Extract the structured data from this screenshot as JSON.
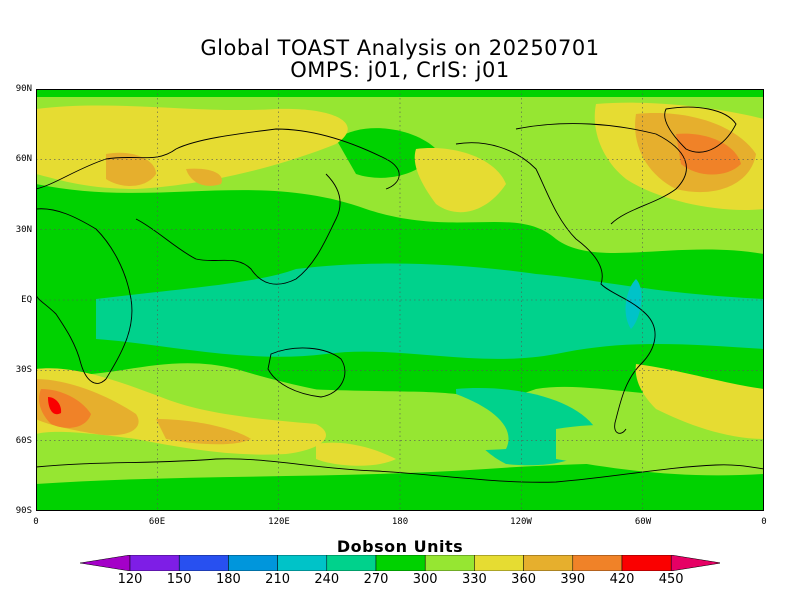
{
  "title": "Global TOAST Analysis on 20250701",
  "subtitle": "OMPS: j01, CrIS: j01",
  "map": {
    "projection": "cylindrical equidistant",
    "lon_range": [
      0,
      360
    ],
    "lat_range": [
      -90,
      90
    ],
    "grid": "dotted lines every 60 degrees longitude and 30 degrees latitude",
    "lat_labels": [
      "90N",
      "60N",
      "30N",
      "EQ",
      "30S",
      "60S",
      "90S"
    ],
    "lon_labels": [
      "0",
      "60E",
      "120E",
      "180",
      "120W",
      "60W",
      "0"
    ],
    "features": [
      "total ozone shaded field",
      "coastlines"
    ]
  },
  "colorbar": {
    "title": "Dobson Units",
    "levels": [
      120,
      150,
      180,
      210,
      240,
      270,
      300,
      330,
      360,
      390,
      420,
      450
    ],
    "labels": [
      "120",
      "150",
      "180",
      "210",
      "240",
      "270",
      "300",
      "330",
      "360",
      "390",
      "420",
      "450"
    ],
    "colors": [
      "#a400c8",
      "#7e1ee6",
      "#2850f0",
      "#0096dc",
      "#00c3c8",
      "#00d28c",
      "#00d200",
      "#96e632",
      "#e6dc32",
      "#e6af2d",
      "#f08228",
      "#fa0000",
      "#e60064"
    ],
    "extend": "both"
  }
}
